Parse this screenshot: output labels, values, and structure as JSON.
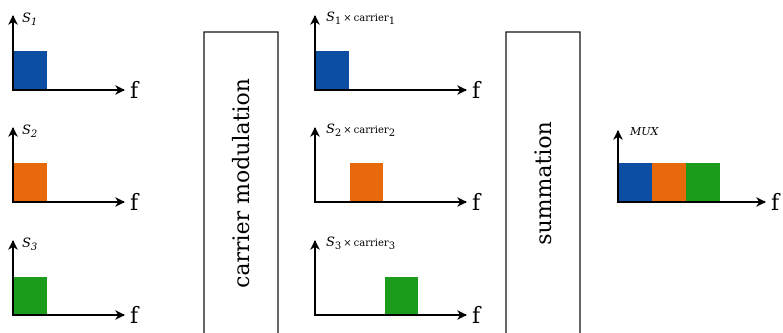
{
  "colors": {
    "s1": "#0b4ea2",
    "s2": "#e8680c",
    "s3": "#1c9b1c",
    "stroke": "#000000"
  },
  "axis_label": "f",
  "inputs": [
    {
      "symbol": "S",
      "sub": "1"
    },
    {
      "symbol": "S",
      "sub": "2"
    },
    {
      "symbol": "S",
      "sub": "3"
    }
  ],
  "blocks": {
    "modulation": "carrier modulation",
    "summation": "summation"
  },
  "modulated": [
    {
      "symbol": "S",
      "sub": "1",
      "times": "×",
      "carrier": "carrier",
      "carrier_sub": "1"
    },
    {
      "symbol": "S",
      "sub": "2",
      "times": "×",
      "carrier": "carrier",
      "carrier_sub": "2"
    },
    {
      "symbol": "S",
      "sub": "3",
      "times": "×",
      "carrier": "carrier",
      "carrier_sub": "3"
    }
  ],
  "output": {
    "label": "MUX"
  }
}
